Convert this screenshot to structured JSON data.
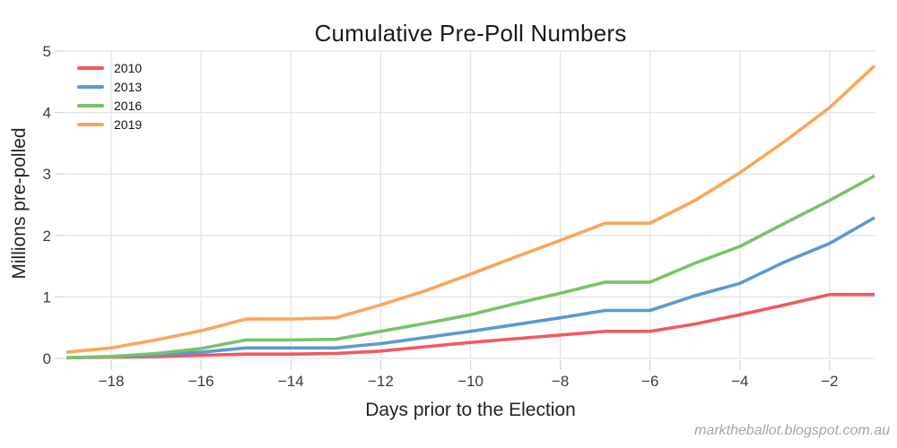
{
  "title": "Cumulative Pre-Poll Numbers",
  "watermark": "marktheballot.blogspot.com.au",
  "colors": {
    "grid": "#e4e4e4",
    "tick": "#d6d6d6",
    "tick_label": "#3d3d3d"
  },
  "chart_data": {
    "type": "line",
    "title": "Cumulative Pre-Poll Numbers",
    "xlabel": "Days prior to the Election",
    "ylabel": "Millions pre-polled",
    "xlim": [
      -19,
      -1
    ],
    "ylim": [
      0,
      5
    ],
    "x_ticks": [
      -18,
      -16,
      -14,
      -12,
      -10,
      -8,
      -6,
      -4,
      -2
    ],
    "y_ticks": [
      0,
      1,
      2,
      3,
      4,
      5
    ],
    "grid": true,
    "legend_position": "top-left",
    "x": [
      -19,
      -18,
      -17,
      -16,
      -15,
      -14,
      -13,
      -12,
      -11,
      -10,
      -9,
      -8,
      -7,
      -6,
      -5,
      -4,
      -3,
      -2,
      -1
    ],
    "series": [
      {
        "name": "2010",
        "color": "#f1595f",
        "values": [
          0.01,
          0.02,
          0.03,
          0.05,
          0.07,
          0.07,
          0.08,
          0.12,
          0.19,
          0.26,
          0.32,
          0.38,
          0.44,
          0.44,
          0.56,
          0.71,
          0.87,
          1.04,
          1.04
        ]
      },
      {
        "name": "2013",
        "color": "#599ad3",
        "values": [
          0.01,
          0.03,
          0.06,
          0.1,
          0.17,
          0.17,
          0.17,
          0.24,
          0.34,
          0.44,
          0.55,
          0.66,
          0.78,
          0.78,
          1.02,
          1.22,
          1.57,
          1.87,
          2.29
        ]
      },
      {
        "name": "2016",
        "color": "#79c36a",
        "values": [
          0.01,
          0.03,
          0.08,
          0.16,
          0.3,
          0.3,
          0.31,
          0.44,
          0.57,
          0.71,
          0.89,
          1.06,
          1.24,
          1.24,
          1.55,
          1.82,
          2.2,
          2.57,
          2.97
        ]
      },
      {
        "name": "2019",
        "color": "#f9a65a",
        "values": [
          0.1,
          0.17,
          0.3,
          0.45,
          0.64,
          0.64,
          0.66,
          0.87,
          1.1,
          1.37,
          1.65,
          1.92,
          2.2,
          2.2,
          2.57,
          3.02,
          3.53,
          4.08,
          4.76
        ]
      }
    ]
  }
}
